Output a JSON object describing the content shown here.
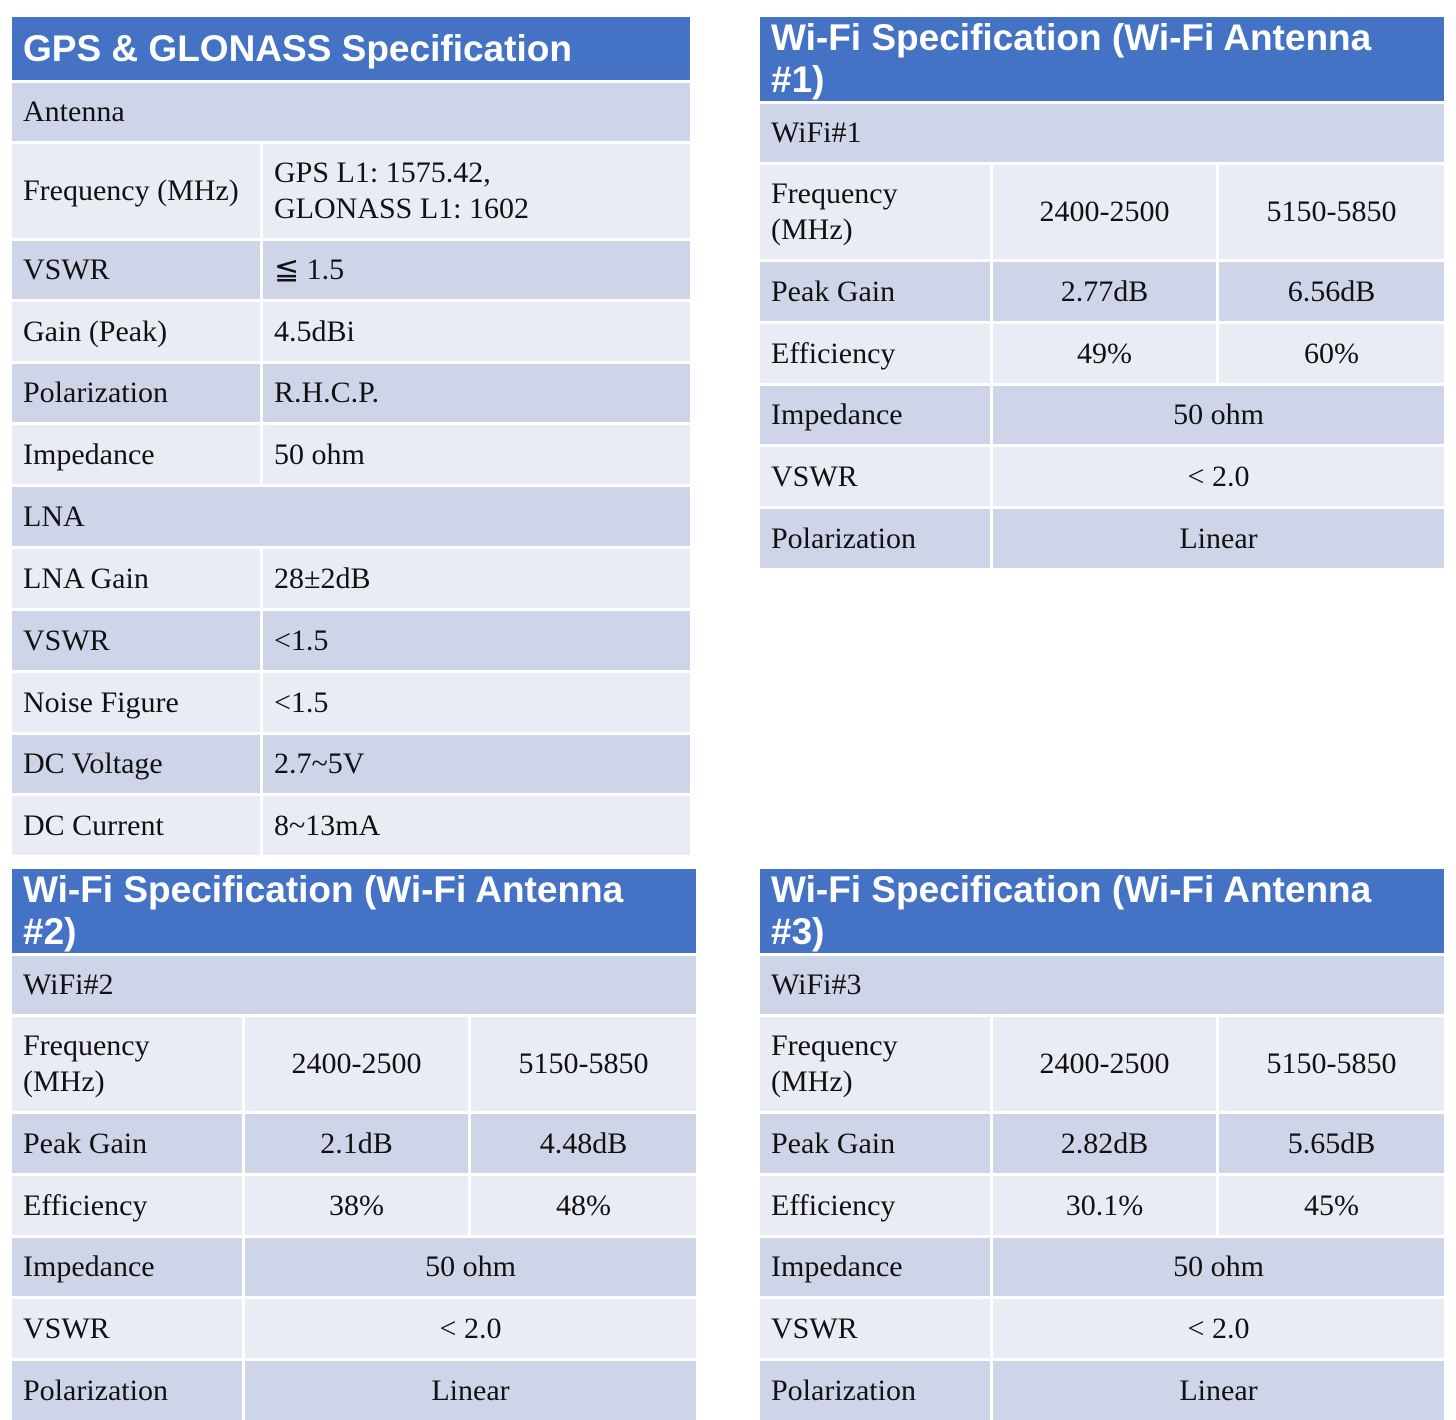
{
  "gps": {
    "title": "GPS & GLONASS Specification",
    "antenna_section": "Antenna",
    "freq_label": "Frequency (MHz)",
    "freq_value_1": "GPS L1: 1575.42,",
    "freq_value_2": "GLONASS L1: 1602",
    "vswr_label": "VSWR",
    "vswr_value": "≦ 1.5",
    "gain_label": "Gain (Peak)",
    "gain_value": "4.5dBi",
    "pol_label": "Polarization",
    "pol_value": "R.H.C.P.",
    "imp_label": "Impedance",
    "imp_value": "50 ohm",
    "lna_section": "LNA",
    "lna_gain_label": "LNA Gain",
    "lna_gain_value": "28±2dB",
    "lna_vswr_label": "VSWR",
    "lna_vswr_value": "<1.5",
    "nf_label": "Noise Figure",
    "nf_value": "<1.5",
    "dcv_label": "DC Voltage",
    "dcv_value": "2.7~5V",
    "dci_label": "DC Current",
    "dci_value": "8~13mA"
  },
  "wifi1": {
    "title": "Wi-Fi Specification (Wi-Fi Antenna #1)",
    "section": "WiFi#1",
    "freq_label": "Frequency (MHz)",
    "freq_a": "2400-2500",
    "freq_b": "5150-5850",
    "gain_label": "Peak Gain",
    "gain_a": "2.77dB",
    "gain_b": "6.56dB",
    "eff_label": "Efficiency",
    "eff_a": "49%",
    "eff_b": "60%",
    "imp_label": "Impedance",
    "imp_value": "50 ohm",
    "vswr_label": "VSWR",
    "vswr_value": "< 2.0",
    "pol_label": "Polarization",
    "pol_value": "Linear"
  },
  "wifi2": {
    "title": "Wi-Fi Specification (Wi-Fi Antenna #2)",
    "section": "WiFi#2",
    "freq_label": "Frequency (MHz)",
    "freq_a": "2400-2500",
    "freq_b": "5150-5850",
    "gain_label": "Peak Gain",
    "gain_a": "2.1dB",
    "gain_b": "4.48dB",
    "eff_label": "Efficiency",
    "eff_a": "38%",
    "eff_b": "48%",
    "imp_label": "Impedance",
    "imp_value": "50 ohm",
    "vswr_label": "VSWR",
    "vswr_value": "< 2.0",
    "pol_label": "Polarization",
    "pol_value": "Linear"
  },
  "wifi3": {
    "title": "Wi-Fi Specification (Wi-Fi Antenna #3)",
    "section": "WiFi#3",
    "freq_label": "Frequency (MHz)",
    "freq_a": "2400-2500",
    "freq_b": "5150-5850",
    "gain_label": "Peak Gain",
    "gain_a": "2.82dB",
    "gain_b": "5.65dB",
    "eff_label": "Efficiency",
    "eff_a": "30.1%",
    "eff_b": "45%",
    "imp_label": "Impedance",
    "imp_value": "50 ohm",
    "vswr_label": "VSWR",
    "vswr_value": "< 2.0",
    "pol_label": "Polarization",
    "pol_value": "Linear"
  }
}
